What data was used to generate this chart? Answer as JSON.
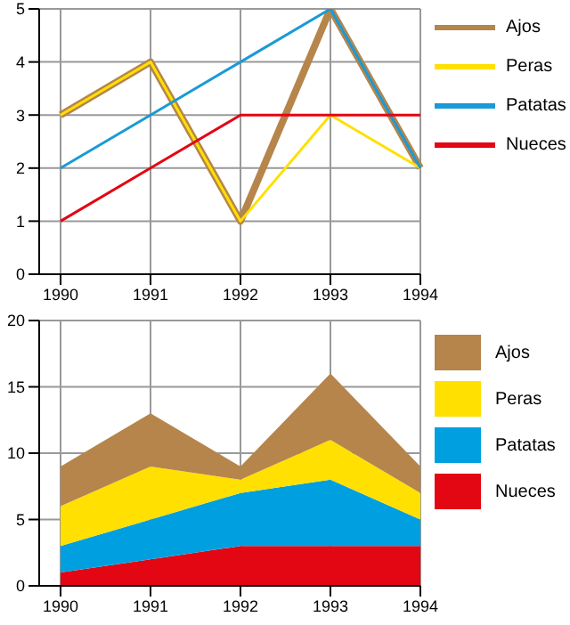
{
  "chart_data": [
    {
      "type": "line",
      "categories": [
        "1990",
        "1991",
        "1992",
        "1993",
        "1994"
      ],
      "ylim": [
        0,
        5
      ],
      "yticks": [
        0,
        1,
        2,
        3,
        4,
        5
      ],
      "grid": true,
      "legend": "right",
      "series": [
        {
          "name": "Ajos",
          "color": "#b5854b",
          "values": [
            3,
            4,
            1,
            5,
            2
          ]
        },
        {
          "name": "Peras",
          "color": "#ffe000",
          "values": [
            3,
            4,
            1,
            3,
            2
          ]
        },
        {
          "name": "Patatas",
          "color": "#1a9ad6",
          "values": [
            2,
            3,
            4,
            5,
            2
          ]
        },
        {
          "name": "Nueces",
          "color": "#e30613",
          "values": [
            1,
            2,
            3,
            3,
            3
          ]
        }
      ]
    },
    {
      "type": "area",
      "stacked": true,
      "categories": [
        "1990",
        "1991",
        "1992",
        "1993",
        "1994"
      ],
      "ylim": [
        0,
        20
      ],
      "yticks": [
        0,
        5,
        10,
        15,
        20
      ],
      "grid": true,
      "legend": "right",
      "series": [
        {
          "name": "Nueces",
          "color": "#e30613",
          "values": [
            1,
            2,
            3,
            3,
            3
          ]
        },
        {
          "name": "Patatas",
          "color": "#00a0e0",
          "values": [
            2,
            3,
            4,
            5,
            2
          ]
        },
        {
          "name": "Peras",
          "color": "#ffe000",
          "values": [
            3,
            4,
            1,
            3,
            2
          ]
        },
        {
          "name": "Ajos",
          "color": "#b5854b",
          "values": [
            3,
            4,
            1,
            5,
            2
          ]
        }
      ]
    }
  ]
}
